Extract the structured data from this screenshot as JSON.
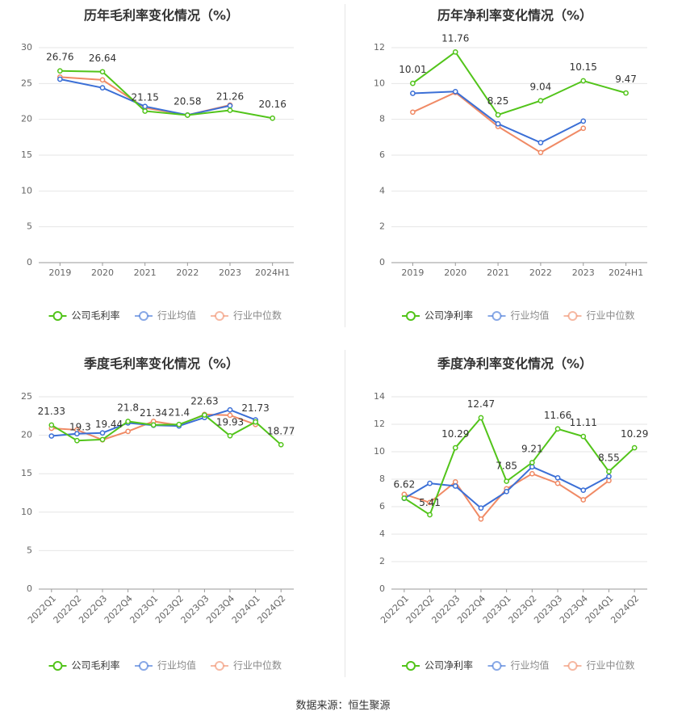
{
  "chart_data": [
    {
      "type": "line",
      "title": "历年毛利率变化情况（%）",
      "categories": [
        "2019",
        "2020",
        "2021",
        "2022",
        "2023",
        "2024H1"
      ],
      "ylim": [
        0,
        30
      ],
      "yticks": [
        0,
        5,
        10,
        15,
        20,
        25,
        30
      ],
      "grid": true,
      "legend_position": "bottom",
      "series": [
        {
          "name": "公司毛利率",
          "color": "#52c41a",
          "labels": true,
          "values": [
            26.76,
            26.64,
            21.15,
            20.58,
            21.26,
            20.16
          ]
        },
        {
          "name": "行业均值",
          "color": "#3b6fd6",
          "labels": false,
          "values": [
            25.6,
            24.4,
            21.8,
            20.6,
            21.9,
            null
          ]
        },
        {
          "name": "行业中位数",
          "color": "#f08a65",
          "labels": false,
          "values": [
            25.9,
            25.5,
            21.6,
            20.6,
            22.0,
            null
          ]
        }
      ]
    },
    {
      "type": "line",
      "title": "历年净利率变化情况（%）",
      "categories": [
        "2019",
        "2020",
        "2021",
        "2022",
        "2023",
        "2024H1"
      ],
      "ylim": [
        0,
        12
      ],
      "yticks": [
        0,
        2,
        4,
        6,
        8,
        10,
        12
      ],
      "grid": true,
      "legend_position": "bottom",
      "series": [
        {
          "name": "公司净利率",
          "color": "#52c41a",
          "labels": true,
          "values": [
            10.01,
            11.76,
            8.25,
            9.04,
            10.15,
            9.47
          ]
        },
        {
          "name": "行业均值",
          "color": "#3b6fd6",
          "labels": false,
          "values": [
            9.45,
            9.55,
            7.75,
            6.7,
            7.9,
            null
          ]
        },
        {
          "name": "行业中位数",
          "color": "#f08a65",
          "labels": false,
          "values": [
            8.4,
            9.5,
            7.6,
            6.15,
            7.5,
            null
          ]
        }
      ]
    },
    {
      "type": "line",
      "title": "季度毛利率变化情况（%）",
      "categories": [
        "2022Q1",
        "2022Q2",
        "2022Q3",
        "2022Q4",
        "2023Q1",
        "2023Q2",
        "2023Q3",
        "2023Q4",
        "2024Q1",
        "2024Q2"
      ],
      "ylim": [
        0,
        25
      ],
      "yticks": [
        0,
        5,
        10,
        15,
        20,
        25
      ],
      "grid": true,
      "legend_position": "bottom",
      "series": [
        {
          "name": "公司毛利率",
          "color": "#52c41a",
          "labels": true,
          "values": [
            21.33,
            19.3,
            19.44,
            21.8,
            21.34,
            21.4,
            22.63,
            19.93,
            21.73,
            18.77
          ]
        },
        {
          "name": "行业均值",
          "color": "#3b6fd6",
          "labels": false,
          "values": [
            19.9,
            20.2,
            20.3,
            21.6,
            21.3,
            21.2,
            22.3,
            23.3,
            22.0,
            null
          ]
        },
        {
          "name": "行业中位数",
          "color": "#f08a65",
          "labels": false,
          "values": [
            20.9,
            20.7,
            19.4,
            20.5,
            21.8,
            21.3,
            22.7,
            22.6,
            21.4,
            null
          ]
        }
      ]
    },
    {
      "type": "line",
      "title": "季度净利率变化情况（%）",
      "categories": [
        "2022Q1",
        "2022Q2",
        "2022Q3",
        "2022Q4",
        "2023Q1",
        "2023Q2",
        "2023Q3",
        "2023Q4",
        "2024Q1",
        "2024Q2"
      ],
      "ylim": [
        0,
        14
      ],
      "yticks": [
        0,
        2,
        4,
        6,
        8,
        10,
        12,
        14
      ],
      "grid": true,
      "legend_position": "bottom",
      "series": [
        {
          "name": "公司净利率",
          "color": "#52c41a",
          "labels": true,
          "values": [
            6.62,
            5.41,
            10.29,
            12.47,
            7.85,
            9.21,
            11.66,
            11.11,
            8.55,
            10.29
          ]
        },
        {
          "name": "行业均值",
          "color": "#3b6fd6",
          "labels": false,
          "values": [
            6.6,
            7.7,
            7.5,
            5.9,
            7.1,
            8.9,
            8.1,
            7.2,
            8.2,
            null
          ]
        },
        {
          "name": "行业中位数",
          "color": "#f08a65",
          "labels": false,
          "values": [
            6.9,
            6.3,
            7.8,
            5.1,
            7.3,
            8.4,
            7.7,
            6.5,
            7.9,
            null
          ]
        }
      ]
    }
  ],
  "footer": {
    "source": "数据来源：恒生聚源"
  }
}
